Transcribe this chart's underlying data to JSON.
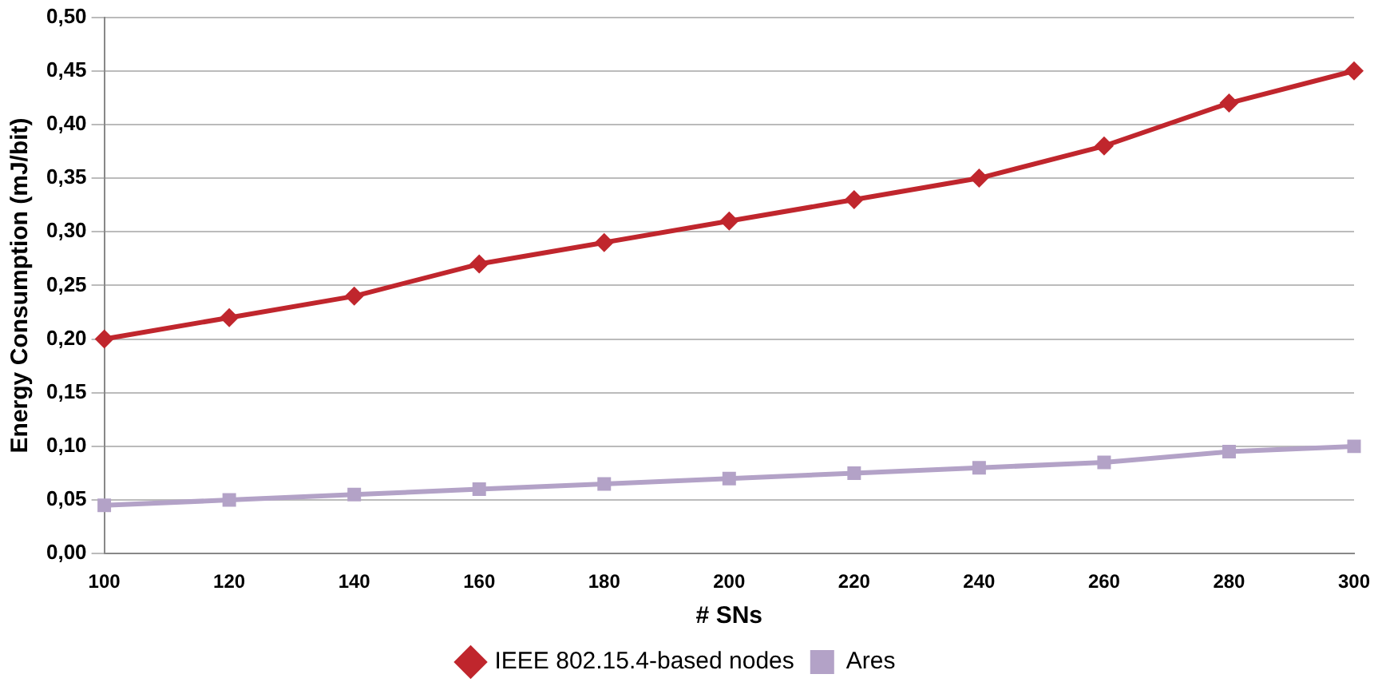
{
  "chart_data": {
    "type": "line",
    "xlabel": "# SNs",
    "ylabel": "Energy Consumption (mJ/bit)",
    "categories": [
      "100",
      "120",
      "140",
      "160",
      "180",
      "200",
      "220",
      "240",
      "260",
      "280",
      "300"
    ],
    "series": [
      {
        "name": "IEEE 802.15.4-based nodes",
        "color": "#c0262d",
        "marker": "diamond",
        "values": [
          0.2,
          0.22,
          0.24,
          0.27,
          0.29,
          0.31,
          0.33,
          0.35,
          0.38,
          0.42,
          0.45
        ]
      },
      {
        "name": "Ares",
        "color": "#b3a2c7",
        "marker": "square",
        "values": [
          0.045,
          0.05,
          0.055,
          0.06,
          0.065,
          0.07,
          0.075,
          0.08,
          0.085,
          0.095,
          0.1
        ]
      }
    ],
    "ylim": [
      0,
      0.5
    ],
    "yticks": [
      {
        "value": 0,
        "label": "0,00"
      },
      {
        "value": 0.05,
        "label": "0,05"
      },
      {
        "value": 0.1,
        "label": "0,10"
      },
      {
        "value": 0.15,
        "label": "0,15"
      },
      {
        "value": 0.2,
        "label": "0,20"
      },
      {
        "value": 0.25,
        "label": "0,25"
      },
      {
        "value": 0.3,
        "label": "0,30"
      },
      {
        "value": 0.35,
        "label": "0,35"
      },
      {
        "value": 0.4,
        "label": "0,40"
      },
      {
        "value": 0.45,
        "label": "0,45"
      },
      {
        "value": 0.5,
        "label": "0,50"
      }
    ],
    "grid": "y",
    "legend": "bottom",
    "line_style": "solid"
  }
}
